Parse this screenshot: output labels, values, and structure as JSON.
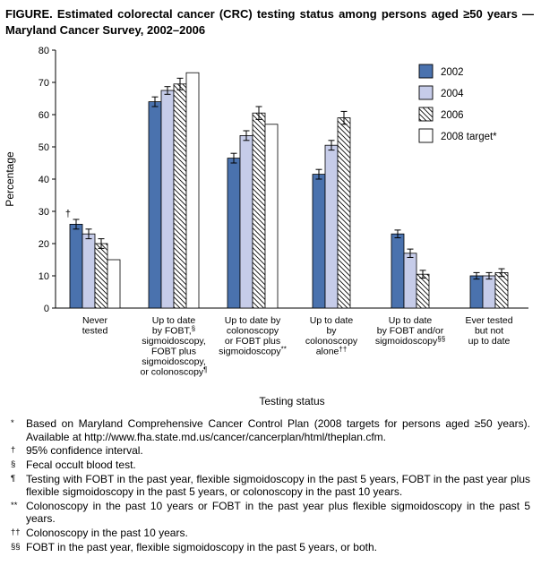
{
  "figure": {
    "title": "FIGURE. Estimated colorectal cancer (CRC) testing status among persons aged ≥50 years — Maryland Cancer Survey, 2002–2006"
  },
  "chart_data": {
    "type": "bar",
    "title": "Estimated colorectal cancer (CRC) testing status among persons aged ≥50 years — Maryland Cancer Survey, 2002–2006",
    "xlabel": "Testing status",
    "ylabel": "Percentage",
    "ylim": [
      0,
      80
    ],
    "ytick_interval": 10,
    "grid": "off",
    "legend_position": "upper right",
    "ci_annotation": "†",
    "categories": [
      "Never\ntested",
      "Up to date\nby FOBT,§\nsigmoidoscopy,\nFOBT plus\nsigmoidoscopy,\nor colonoscopy¶",
      "Up to date by\ncolonoscopy\nor FOBT plus\nsigmoidoscopy**",
      "Up to date\nby\ncolonoscopy\nalone††",
      "Up to date\nby FOBT and/or\nsigmoidoscopy§§",
      "Ever tested\nbut not\nup to date"
    ],
    "series": [
      {
        "name": "2002",
        "fill": "#4a72ae",
        "values": [
          26,
          64,
          46.5,
          41.5,
          23,
          10
        ],
        "errors": [
          1.5,
          1.5,
          1.5,
          1.5,
          1.2,
          1.0
        ]
      },
      {
        "name": "2004",
        "fill": "#c6cce9",
        "values": [
          23,
          67.5,
          53.5,
          50.5,
          17,
          10
        ],
        "errors": [
          1.5,
          1.2,
          1.5,
          1.5,
          1.3,
          1.0
        ]
      },
      {
        "name": "2006",
        "fill": "hatch",
        "values": [
          20,
          69.5,
          60.5,
          59,
          10.5,
          11
        ],
        "errors": [
          1.5,
          1.8,
          2.0,
          2.0,
          1.2,
          1.2
        ]
      },
      {
        "name": "2008 target*",
        "fill": "#ffffff",
        "values": [
          15,
          73,
          57,
          null,
          null,
          null
        ]
      }
    ]
  },
  "footnotes": [
    {
      "marker": "*",
      "text": "Based on Maryland Comprehensive Cancer Control Plan (2008 targets for persons aged ≥50 years). Available at http://www.fha.state.md.us/cancer/cancerplan/html/theplan.cfm."
    },
    {
      "marker": "†",
      "text": "95% confidence interval."
    },
    {
      "marker": "§",
      "text": "Fecal occult blood test."
    },
    {
      "marker": "¶",
      "text": "Testing with FOBT in the past year, flexible sigmoidoscopy in the past 5 years, FOBT in the past year plus flexible sigmoidoscopy in the past 5 years, or colonoscopy in the past 10 years."
    },
    {
      "marker": "**",
      "text": "Colonoscopy in the past 10 years or FOBT in the past year plus flexible sigmoidoscopy in the past 5 years."
    },
    {
      "marker": "††",
      "text": "Colonoscopy in the past 10 years."
    },
    {
      "marker": "§§",
      "text": "FOBT in the past year, flexible sigmoidoscopy in the past 5 years, or both."
    }
  ]
}
